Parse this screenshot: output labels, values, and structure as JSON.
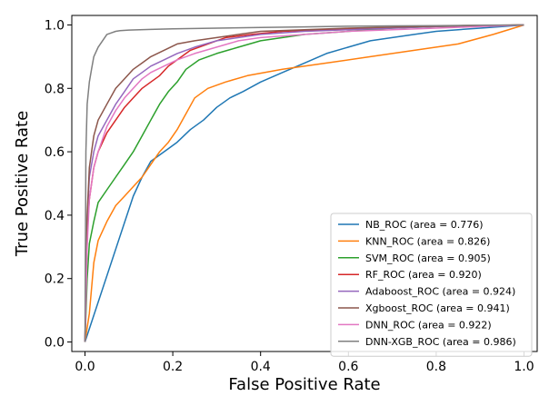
{
  "chart_data": {
    "type": "line",
    "title": "",
    "xlabel": "False Positive Rate",
    "ylabel": "True Positive Rate",
    "xlim": [
      -0.03,
      1.03
    ],
    "ylim": [
      -0.03,
      1.03
    ],
    "xticks": [
      0.0,
      0.2,
      0.4,
      0.6,
      0.8,
      1.0
    ],
    "yticks": [
      0.0,
      0.2,
      0.4,
      0.6,
      0.8,
      1.0
    ],
    "xtick_labels": [
      "0.0",
      "0.2",
      "0.4",
      "0.6",
      "0.8",
      "1.0"
    ],
    "ytick_labels": [
      "0.0",
      "0.2",
      "0.4",
      "0.6",
      "0.8",
      "1.0"
    ],
    "grid": false,
    "legend_position": "lower-right",
    "series": [
      {
        "name": "NB_ROC (area = 0.776)",
        "color": "#1f77b4",
        "x": [
          0,
          0.11,
          0.13,
          0.15,
          0.17,
          0.19,
          0.21,
          0.24,
          0.27,
          0.3,
          0.33,
          0.36,
          0.4,
          0.45,
          0.5,
          0.55,
          0.6,
          0.65,
          0.7,
          0.75,
          0.8,
          0.85,
          0.9,
          0.95,
          1.0
        ],
        "y": [
          0,
          0.46,
          0.52,
          0.57,
          0.59,
          0.61,
          0.63,
          0.67,
          0.7,
          0.74,
          0.77,
          0.79,
          0.82,
          0.85,
          0.88,
          0.91,
          0.93,
          0.95,
          0.96,
          0.97,
          0.98,
          0.985,
          0.99,
          0.995,
          1.0
        ]
      },
      {
        "name": "KNN_ROC (area = 0.826)",
        "color": "#ff7f0e",
        "x": [
          0,
          0.01,
          0.02,
          0.03,
          0.05,
          0.07,
          0.09,
          0.11,
          0.13,
          0.15,
          0.17,
          0.19,
          0.21,
          0.23,
          0.25,
          0.28,
          0.32,
          0.37,
          0.45,
          0.55,
          0.65,
          0.75,
          0.85,
          0.93,
          1.0
        ],
        "y": [
          0,
          0.09,
          0.25,
          0.32,
          0.38,
          0.43,
          0.46,
          0.49,
          0.52,
          0.56,
          0.6,
          0.63,
          0.67,
          0.72,
          0.77,
          0.8,
          0.82,
          0.84,
          0.86,
          0.88,
          0.9,
          0.92,
          0.94,
          0.97,
          1.0
        ]
      },
      {
        "name": "SVM_ROC (area = 0.905)",
        "color": "#2ca02c",
        "x": [
          0,
          0.005,
          0.01,
          0.02,
          0.03,
          0.05,
          0.07,
          0.09,
          0.11,
          0.13,
          0.15,
          0.17,
          0.19,
          0.21,
          0.23,
          0.26,
          0.3,
          0.35,
          0.4,
          0.5,
          0.6,
          0.7,
          0.8,
          0.9,
          1.0
        ],
        "y": [
          0,
          0.2,
          0.31,
          0.38,
          0.44,
          0.48,
          0.52,
          0.56,
          0.6,
          0.65,
          0.7,
          0.75,
          0.79,
          0.82,
          0.86,
          0.89,
          0.91,
          0.93,
          0.95,
          0.97,
          0.98,
          0.99,
          0.995,
          0.998,
          1.0
        ]
      },
      {
        "name": "RF_ROC (area = 0.920)",
        "color": "#d62728",
        "x": [
          0,
          0.005,
          0.01,
          0.02,
          0.03,
          0.05,
          0.07,
          0.09,
          0.11,
          0.13,
          0.15,
          0.17,
          0.19,
          0.21,
          0.24,
          0.28,
          0.32,
          0.38,
          0.45,
          0.55,
          0.65,
          0.75,
          0.85,
          1.0
        ],
        "y": [
          0,
          0.35,
          0.45,
          0.55,
          0.6,
          0.66,
          0.7,
          0.74,
          0.77,
          0.8,
          0.82,
          0.84,
          0.87,
          0.89,
          0.92,
          0.94,
          0.96,
          0.97,
          0.98,
          0.985,
          0.99,
          0.995,
          0.998,
          1.0
        ]
      },
      {
        "name": "Adaboost_ROC (area = 0.924)",
        "color": "#9467bd",
        "x": [
          0,
          0.005,
          0.01,
          0.02,
          0.03,
          0.05,
          0.07,
          0.09,
          0.11,
          0.13,
          0.15,
          0.18,
          0.21,
          0.25,
          0.3,
          0.35,
          0.4,
          0.5,
          0.6,
          0.7,
          0.8,
          0.9,
          1.0
        ],
        "y": [
          0,
          0.38,
          0.52,
          0.6,
          0.65,
          0.7,
          0.75,
          0.79,
          0.83,
          0.85,
          0.87,
          0.89,
          0.91,
          0.93,
          0.95,
          0.96,
          0.97,
          0.98,
          0.985,
          0.99,
          0.995,
          0.998,
          1.0
        ]
      },
      {
        "name": "Xgboost_ROC (area = 0.941)",
        "color": "#8c564b",
        "x": [
          0,
          0.005,
          0.01,
          0.02,
          0.03,
          0.05,
          0.07,
          0.09,
          0.11,
          0.13,
          0.15,
          0.18,
          0.21,
          0.25,
          0.3,
          0.35,
          0.4,
          0.5,
          0.6,
          0.7,
          0.8,
          0.9,
          1.0
        ],
        "y": [
          0,
          0.4,
          0.55,
          0.65,
          0.7,
          0.75,
          0.8,
          0.83,
          0.86,
          0.88,
          0.9,
          0.92,
          0.94,
          0.95,
          0.96,
          0.97,
          0.98,
          0.985,
          0.99,
          0.993,
          0.996,
          0.998,
          1.0
        ]
      },
      {
        "name": "DNN_ROC (area = 0.922)",
        "color": "#e377c2",
        "x": [
          0,
          0.005,
          0.01,
          0.02,
          0.03,
          0.05,
          0.07,
          0.09,
          0.11,
          0.13,
          0.15,
          0.18,
          0.21,
          0.25,
          0.3,
          0.35,
          0.4,
          0.5,
          0.6,
          0.7,
          0.8,
          0.9,
          1.0
        ],
        "y": [
          0,
          0.3,
          0.45,
          0.55,
          0.6,
          0.68,
          0.73,
          0.77,
          0.8,
          0.83,
          0.85,
          0.87,
          0.89,
          0.91,
          0.93,
          0.95,
          0.96,
          0.97,
          0.98,
          0.985,
          0.99,
          0.995,
          1.0
        ]
      },
      {
        "name": "DNN-XGB_ROC (area = 0.986)",
        "color": "#7f7f7f",
        "x": [
          0,
          0.002,
          0.005,
          0.01,
          0.015,
          0.02,
          0.03,
          0.04,
          0.05,
          0.06,
          0.07,
          0.08,
          0.1,
          0.15,
          0.2,
          0.3,
          0.4,
          0.5,
          0.6,
          0.7,
          0.8,
          0.9,
          1.0
        ],
        "y": [
          0,
          0.6,
          0.75,
          0.82,
          0.86,
          0.9,
          0.93,
          0.95,
          0.97,
          0.975,
          0.98,
          0.982,
          0.984,
          0.986,
          0.988,
          0.99,
          0.992,
          0.994,
          0.996,
          0.997,
          0.998,
          0.999,
          1.0
        ]
      }
    ]
  }
}
